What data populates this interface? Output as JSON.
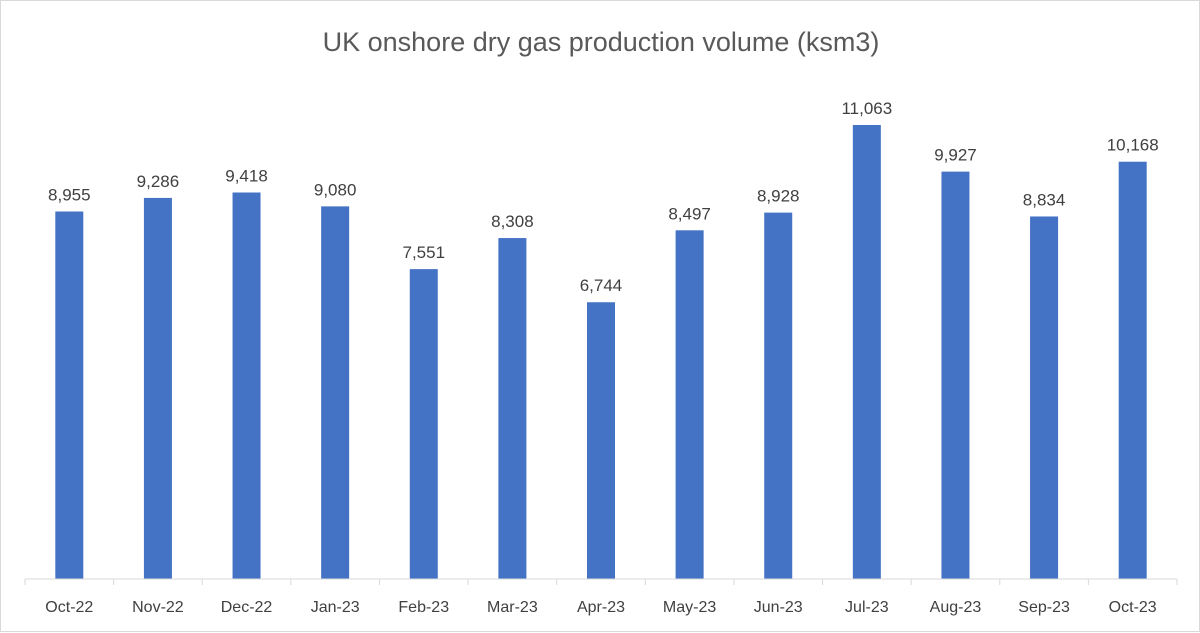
{
  "chart_data": {
    "type": "bar",
    "title": "UK onshore dry gas production volume (ksm3)",
    "xlabel": "",
    "ylabel": "",
    "categories": [
      "Oct-22",
      "Nov-22",
      "Dec-22",
      "Jan-23",
      "Feb-23",
      "Mar-23",
      "Apr-23",
      "May-23",
      "Jun-23",
      "Jul-23",
      "Aug-23",
      "Sep-23",
      "Oct-23"
    ],
    "values": [
      8955,
      9286,
      9418,
      9080,
      7551,
      8308,
      6744,
      8497,
      8928,
      11063,
      9927,
      8834,
      10168
    ],
    "value_labels": [
      "8,955",
      "9,286",
      "9,418",
      "9,080",
      "7,551",
      "8,308",
      "6,744",
      "8,497",
      "8,928",
      "11,063",
      "9,927",
      "8,834",
      "10,168"
    ],
    "ylim": [
      0,
      11063
    ],
    "grid": false,
    "legend": "none",
    "bar_color": "#4472C4",
    "axis_color": "#d9d9d9"
  }
}
